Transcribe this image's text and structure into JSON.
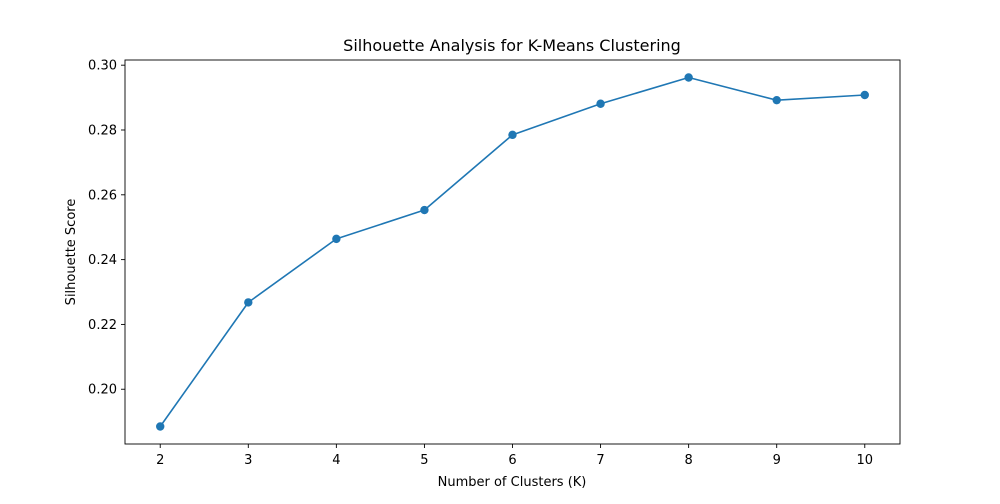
{
  "chart_data": {
    "type": "line",
    "title": "Silhouette Analysis for K-Means Clustering",
    "xlabel": "Number of Clusters (K)",
    "ylabel": "Silhouette Score",
    "x": [
      2,
      3,
      4,
      5,
      6,
      7,
      8,
      9,
      10
    ],
    "series": [
      {
        "values": [
          0.1885,
          0.2268,
          0.2464,
          0.2553,
          0.2785,
          0.2881,
          0.2962,
          0.2892,
          0.2908
        ],
        "color": "#1f77b4",
        "marker": "circle"
      }
    ],
    "xticks": [
      "2",
      "3",
      "4",
      "5",
      "6",
      "7",
      "8",
      "9",
      "10"
    ],
    "yticks": [
      "0.20",
      "0.22",
      "0.24",
      "0.26",
      "0.28",
      "0.30"
    ],
    "xlim": [
      1.6,
      10.4
    ],
    "ylim": [
      0.1831,
      0.3016
    ],
    "grid": false,
    "legend": false
  }
}
